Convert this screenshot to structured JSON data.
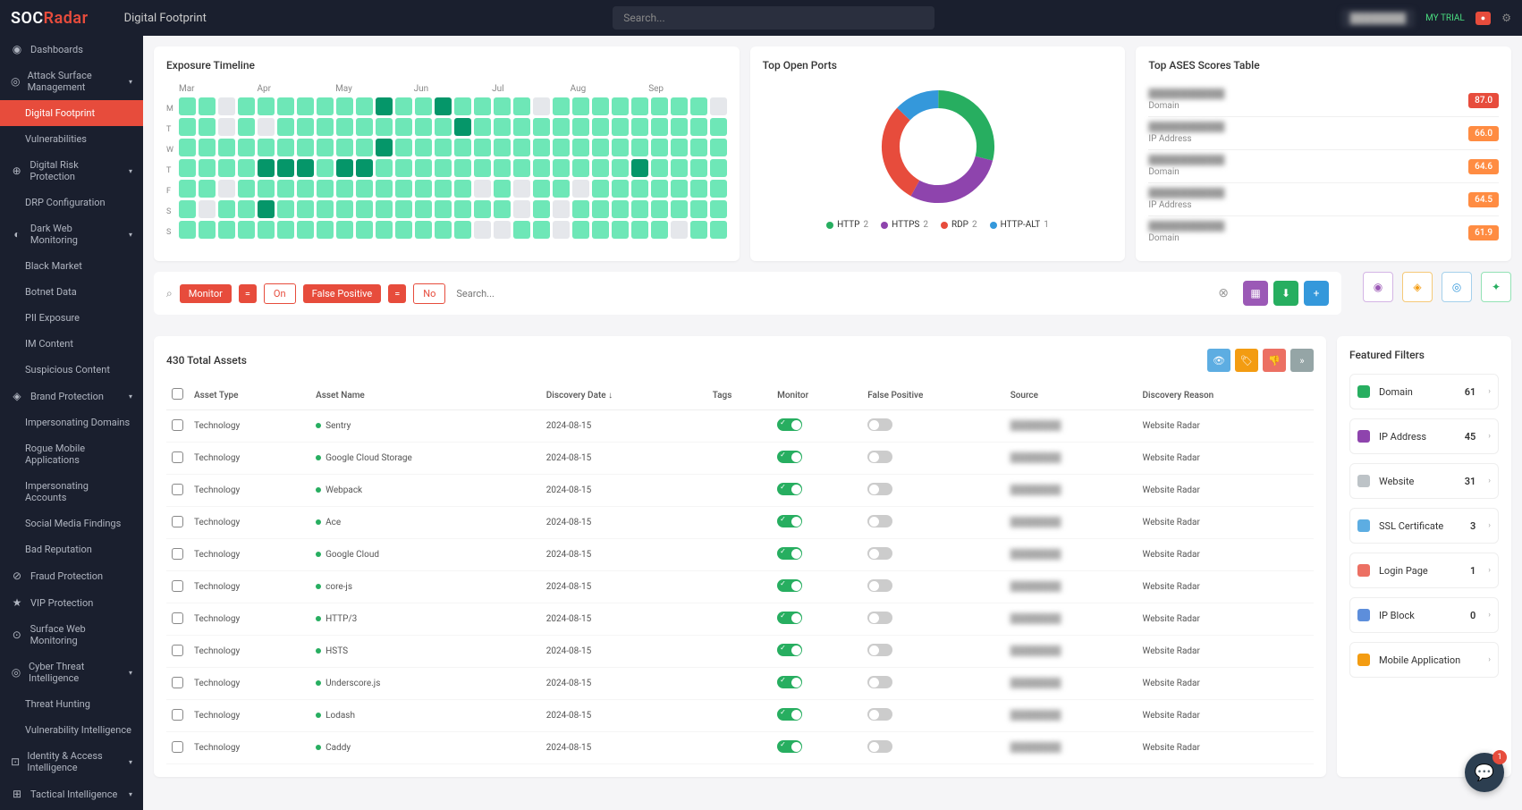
{
  "brand": {
    "name_a": "SOC",
    "name_b": "Radar"
  },
  "page_title": "Digital Footprint",
  "search_placeholder": "Search...",
  "trial_label": "MY TRIAL",
  "sidebar": [
    {
      "label": "Dashboards",
      "icon": "◉",
      "chev": false
    },
    {
      "label": "Attack Surface Management",
      "icon": "◎",
      "chev": true
    },
    {
      "label": "Digital Footprint",
      "icon": "",
      "chev": false,
      "active": true,
      "sub": true
    },
    {
      "label": "Vulnerabilities",
      "icon": "",
      "chev": false,
      "sub": true
    },
    {
      "label": "Digital Risk Protection",
      "icon": "⊕",
      "chev": true
    },
    {
      "label": "DRP Configuration",
      "icon": "",
      "chev": false,
      "sub": true
    },
    {
      "label": "Dark Web Monitoring",
      "icon": "◐",
      "chev": true
    },
    {
      "label": "Black Market",
      "icon": "",
      "chev": false,
      "sub": true
    },
    {
      "label": "Botnet Data",
      "icon": "",
      "chev": false,
      "sub": true
    },
    {
      "label": "PII Exposure",
      "icon": "",
      "chev": false,
      "sub": true
    },
    {
      "label": "IM Content",
      "icon": "",
      "chev": false,
      "sub": true
    },
    {
      "label": "Suspicious Content",
      "icon": "",
      "chev": false,
      "sub": true
    },
    {
      "label": "Brand Protection",
      "icon": "◈",
      "chev": true
    },
    {
      "label": "Impersonating Domains",
      "icon": "",
      "chev": false,
      "sub": true
    },
    {
      "label": "Rogue Mobile Applications",
      "icon": "",
      "chev": false,
      "sub": true
    },
    {
      "label": "Impersonating Accounts",
      "icon": "",
      "chev": false,
      "sub": true
    },
    {
      "label": "Social Media Findings",
      "icon": "",
      "chev": false,
      "sub": true
    },
    {
      "label": "Bad Reputation",
      "icon": "",
      "chev": false,
      "sub": true
    },
    {
      "label": "Fraud Protection",
      "icon": "⊘",
      "chev": false
    },
    {
      "label": "VIP Protection",
      "icon": "★",
      "chev": false
    },
    {
      "label": "Surface Web Monitoring",
      "icon": "⊙",
      "chev": false
    },
    {
      "label": "Cyber Threat Intelligence",
      "icon": "◎",
      "chev": true
    },
    {
      "label": "Threat Hunting",
      "icon": "",
      "chev": false,
      "sub": true
    },
    {
      "label": "Vulnerability Intelligence",
      "icon": "",
      "chev": false,
      "sub": true
    },
    {
      "label": "Identity & Access Intelligence",
      "icon": "⊡",
      "chev": true
    },
    {
      "label": "Tactical Intelligence",
      "icon": "⊞",
      "chev": true
    }
  ],
  "timeline": {
    "title": "Exposure Timeline",
    "months": [
      "Mar",
      "Apr",
      "May",
      "Jun",
      "Jul",
      "Aug",
      "Sep"
    ],
    "days": [
      "M",
      "T",
      "W",
      "T",
      "F",
      "S",
      "S"
    ],
    "colors": {
      "none": "#e5e7eb",
      "l1": "#6ee7b7",
      "l2": "#34d399",
      "l3": "#10b981",
      "l4": "#059669"
    },
    "cells": [
      1,
      1,
      0,
      1,
      1,
      1,
      1,
      1,
      1,
      1,
      4,
      1,
      1,
      4,
      1,
      1,
      1,
      1,
      0,
      1,
      1,
      1,
      1,
      1,
      1,
      1,
      1,
      0,
      1,
      1,
      0,
      1,
      0,
      1,
      1,
      1,
      1,
      1,
      1,
      1,
      1,
      1,
      4,
      1,
      1,
      1,
      1,
      1,
      1,
      1,
      1,
      1,
      1,
      1,
      1,
      1,
      1,
      1,
      1,
      1,
      1,
      1,
      1,
      1,
      1,
      1,
      4,
      1,
      1,
      1,
      1,
      1,
      1,
      1,
      1,
      1,
      1,
      1,
      1,
      1,
      1,
      1,
      1,
      1,
      1,
      1,
      1,
      1,
      4,
      4,
      4,
      1,
      4,
      4,
      1,
      1,
      1,
      1,
      1,
      1,
      1,
      1,
      1,
      1,
      1,
      1,
      1,
      4,
      1,
      1,
      1,
      1,
      1,
      1,
      0,
      1,
      1,
      1,
      1,
      1,
      1,
      1,
      1,
      1,
      1,
      1,
      1,
      0,
      1,
      0,
      1,
      1,
      0,
      1,
      1,
      1,
      1,
      1,
      1,
      1,
      1,
      0,
      1,
      1,
      4,
      1,
      1,
      1,
      1,
      1,
      1,
      1,
      1,
      1,
      1,
      1,
      1,
      0,
      1,
      0,
      1,
      1,
      1,
      1,
      1,
      1,
      1,
      1,
      1,
      1,
      1,
      1,
      1,
      1,
      1,
      1,
      1,
      1,
      1,
      1,
      1,
      1,
      1,
      0,
      0,
      1,
      1,
      0,
      1,
      1,
      1,
      1,
      1,
      0,
      1,
      1
    ]
  },
  "ports": {
    "title": "Top Open Ports",
    "slices": [
      {
        "label": "HTTP",
        "count": 2,
        "color": "#27ae60",
        "pct": 29
      },
      {
        "label": "HTTPS",
        "count": 2,
        "color": "#8e44ad",
        "pct": 29
      },
      {
        "label": "RDP",
        "count": 2,
        "color": "#e74c3c",
        "pct": 29
      },
      {
        "label": "HTTP-ALT",
        "count": 1,
        "color": "#3498db",
        "pct": 13
      }
    ]
  },
  "ases": {
    "title": "Top ASES Scores Table",
    "rows": [
      {
        "type": "Domain",
        "score": "87.0",
        "color": "#e74c3c"
      },
      {
        "type": "IP Address",
        "score": "66.0",
        "color": "#ff8c42"
      },
      {
        "type": "Domain",
        "score": "64.6",
        "color": "#ff8c42"
      },
      {
        "type": "IP Address",
        "score": "64.5",
        "color": "#ff8c42"
      },
      {
        "type": "Domain",
        "score": "61.9",
        "color": "#ff8c42"
      }
    ]
  },
  "filterbar": {
    "monitor": "Monitor",
    "eq": "=",
    "on": "On",
    "fp": "False Positive",
    "no": "No",
    "search_ph": "Search..."
  },
  "total_assets": "430 Total Assets",
  "columns": [
    "Asset Type",
    "Asset Name",
    "Discovery Date",
    "Tags",
    "Monitor",
    "False Positive",
    "Source",
    "Discovery Reason"
  ],
  "assets": [
    {
      "type": "Technology",
      "name": "Sentry",
      "date": "2024-08-15",
      "reason": "Website Radar"
    },
    {
      "type": "Technology",
      "name": "Google Cloud Storage",
      "date": "2024-08-15",
      "reason": "Website Radar"
    },
    {
      "type": "Technology",
      "name": "Webpack",
      "date": "2024-08-15",
      "reason": "Website Radar"
    },
    {
      "type": "Technology",
      "name": "Ace",
      "date": "2024-08-15",
      "reason": "Website Radar"
    },
    {
      "type": "Technology",
      "name": "Google Cloud",
      "date": "2024-08-15",
      "reason": "Website Radar"
    },
    {
      "type": "Technology",
      "name": "core-js",
      "date": "2024-08-15",
      "reason": "Website Radar"
    },
    {
      "type": "Technology",
      "name": "HTTP/3",
      "date": "2024-08-15",
      "reason": "Website Radar"
    },
    {
      "type": "Technology",
      "name": "HSTS",
      "date": "2024-08-15",
      "reason": "Website Radar"
    },
    {
      "type": "Technology",
      "name": "Underscore.js",
      "date": "2024-08-15",
      "reason": "Website Radar"
    },
    {
      "type": "Technology",
      "name": "Lodash",
      "date": "2024-08-15",
      "reason": "Website Radar"
    },
    {
      "type": "Technology",
      "name": "Caddy",
      "date": "2024-08-15",
      "reason": "Website Radar"
    }
  ],
  "featured": {
    "title": "Featured Filters",
    "items": [
      {
        "label": "Domain",
        "count": 61,
        "color": "#27ae60"
      },
      {
        "label": "IP Address",
        "count": 45,
        "color": "#8e44ad"
      },
      {
        "label": "Website",
        "count": 31,
        "color": "#bdc3c7"
      },
      {
        "label": "SSL Certificate",
        "count": 3,
        "color": "#5dade2"
      },
      {
        "label": "Login Page",
        "count": 1,
        "color": "#ec7063"
      },
      {
        "label": "IP Block",
        "count": 0,
        "color": "#5d8edb"
      },
      {
        "label": "Mobile Application",
        "count": "",
        "color": "#f39c12"
      }
    ]
  },
  "chat_badge": "1"
}
